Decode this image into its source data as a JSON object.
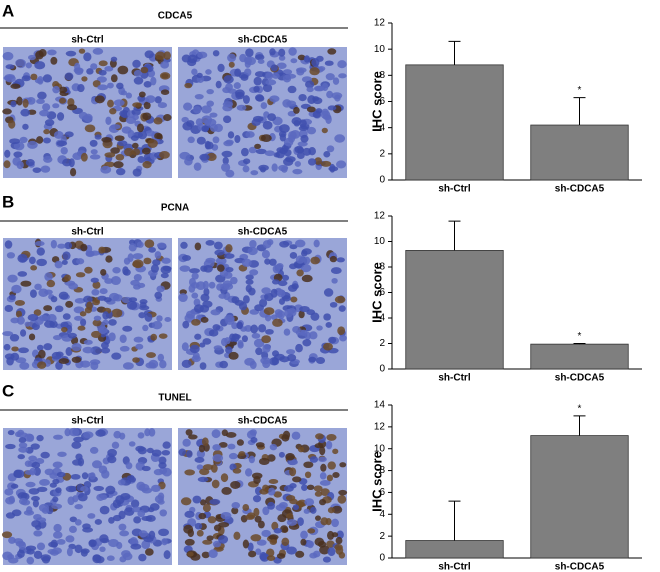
{
  "panels": [
    {
      "label": "A",
      "title": "CDCA5",
      "images": [
        "sh-Ctrl",
        "sh-CDCA5"
      ]
    },
    {
      "label": "B",
      "title": "PCNA",
      "images": [
        "sh-Ctrl",
        "sh-CDCA5"
      ]
    },
    {
      "label": "C",
      "title": "TUNEL",
      "images": [
        "sh-Ctrl",
        "sh-CDCA5"
      ]
    }
  ],
  "chart_data": [
    {
      "type": "bar",
      "ylabel": "IHC score",
      "categories": [
        "sh-Ctrl",
        "sh-CDCA5"
      ],
      "values": [
        8.8,
        4.2
      ],
      "errors": [
        1.8,
        2.1
      ],
      "significance": [
        null,
        "*"
      ],
      "color": "#7f7f7f",
      "ylim": [
        0,
        12
      ],
      "yticks": [
        0,
        2,
        4,
        6,
        8,
        10,
        12
      ]
    },
    {
      "type": "bar",
      "ylabel": "IHC score",
      "categories": [
        "sh-Ctrl",
        "sh-CDCA5"
      ],
      "values": [
        9.3,
        1.95
      ],
      "errors": [
        2.3,
        0.05
      ],
      "significance": [
        null,
        "*"
      ],
      "color": "#7f7f7f",
      "ylim": [
        0,
        12
      ],
      "yticks": [
        0,
        2,
        4,
        6,
        8,
        10,
        12
      ]
    },
    {
      "type": "bar",
      "ylabel": "IHC score",
      "categories": [
        "sh-Ctrl",
        "sh-CDCA5"
      ],
      "values": [
        1.6,
        11.2
      ],
      "errors": [
        3.6,
        1.8
      ],
      "significance": [
        null,
        "*"
      ],
      "color": "#7f7f7f",
      "ylim": [
        0,
        14
      ],
      "yticks": [
        0,
        2,
        4,
        6,
        8,
        10,
        12,
        14
      ]
    }
  ]
}
